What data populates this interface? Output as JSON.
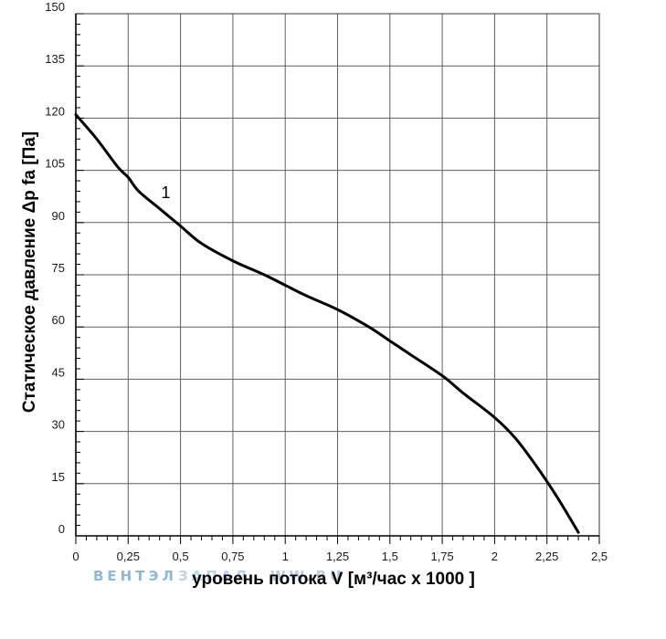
{
  "chart_data": {
    "type": "line",
    "xlabel": "уровень потока  V [м³/час x 1000 ]",
    "ylabel": "Статическое давление  Δp fa [Па]",
    "xlim": [
      0,
      2.5
    ],
    "ylim": [
      0,
      150
    ],
    "x_ticks": [
      "0",
      "0,25",
      "0,5",
      "0,75",
      "1",
      "1,25",
      "1,5",
      "1,75",
      "2",
      "2,25",
      "2,5"
    ],
    "y_ticks": [
      "0",
      "15",
      "30",
      "45",
      "60",
      "75",
      "90",
      "105",
      "120",
      "135",
      "150"
    ],
    "grid": true,
    "series": [
      {
        "name": "1",
        "x": [
          0,
          0.1,
          0.2,
          0.25,
          0.3,
          0.4,
          0.5,
          0.6,
          0.75,
          0.9,
          1.0,
          1.1,
          1.25,
          1.4,
          1.5,
          1.6,
          1.75,
          1.85,
          2.0,
          2.1,
          2.2,
          2.3,
          2.4
        ],
        "y": [
          121,
          114,
          106,
          103,
          99,
          94,
          89,
          84,
          79,
          75,
          72,
          69,
          65,
          60,
          56,
          52,
          46,
          41,
          34,
          28,
          20,
          11,
          1
        ]
      }
    ],
    "colors": {
      "grid": "#5f5f5f",
      "curve": "#000000",
      "axis": "#000000"
    }
  },
  "watermark": {
    "left": "ВЕНТЭЛ",
    "middle": "ЗАПАД",
    "right": "WW.RU",
    "color": "#8fb9dc"
  }
}
